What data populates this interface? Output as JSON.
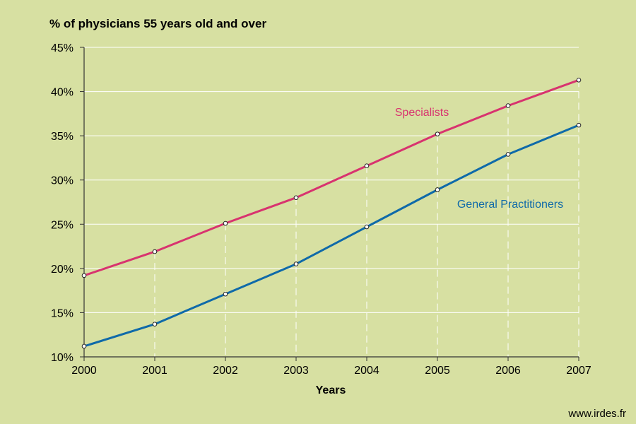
{
  "chart_data": {
    "type": "line",
    "title": "",
    "ylabel": "% of physicians 55 years old and over",
    "xlabel": "Years",
    "x": [
      "2000",
      "2001",
      "2002",
      "2003",
      "2004",
      "2005",
      "2006",
      "2007"
    ],
    "y_ticks": [
      "10%",
      "15%",
      "20%",
      "25%",
      "30%",
      "35%",
      "40%",
      "45%"
    ],
    "ylim": [
      10,
      45
    ],
    "grid": "horizontal solid, vertical dashed",
    "series": [
      {
        "name": "Specialists",
        "color": "#d8336f",
        "values": [
          19.2,
          21.9,
          25.1,
          28.0,
          31.6,
          35.2,
          38.4,
          41.3
        ]
      },
      {
        "name": "General Practitioners",
        "color": "#0f6aa9",
        "values": [
          11.2,
          13.7,
          17.1,
          20.5,
          24.7,
          28.9,
          32.9,
          36.2
        ]
      }
    ]
  },
  "source": "www.irdes.fr"
}
